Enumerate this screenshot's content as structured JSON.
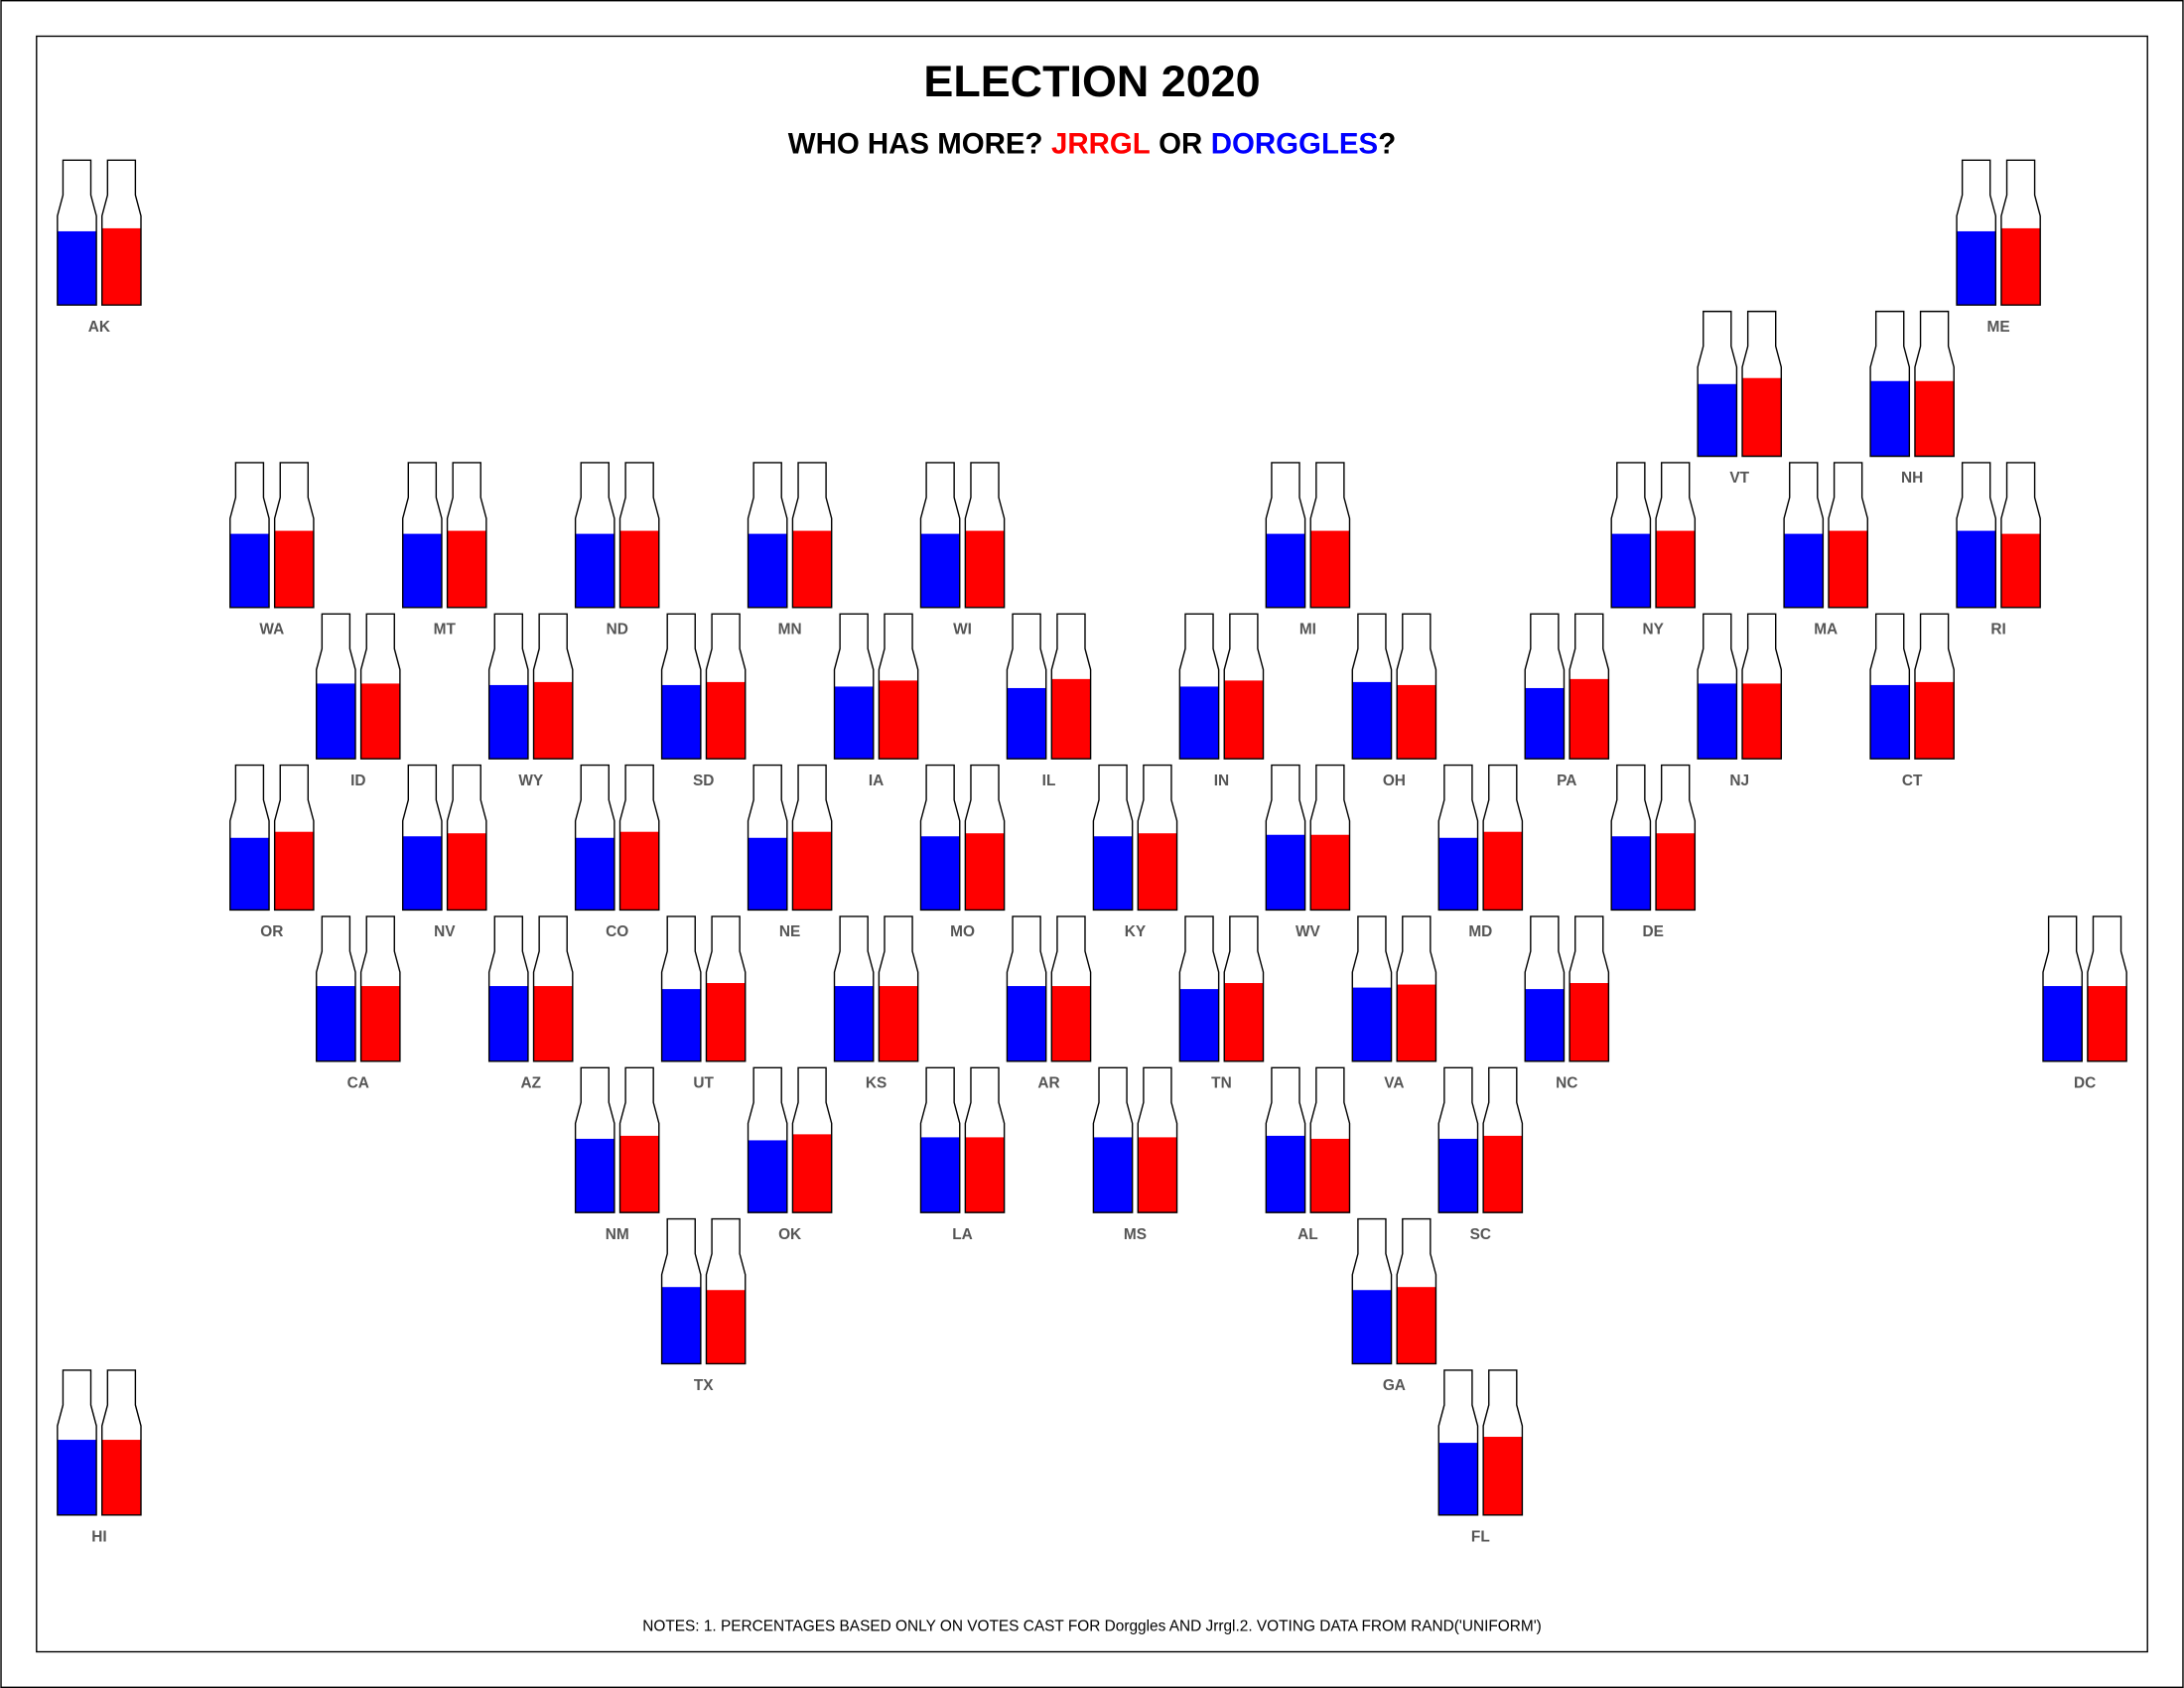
{
  "chart_data": {
    "type": "bottle",
    "title": "ELECTION 2020",
    "subtitle": {
      "lead": "WHO HAS MORE?",
      "middle": "OR",
      "end": "?"
    },
    "categories": [
      "AK",
      "ME",
      "VT",
      "NH",
      "WA",
      "MT",
      "ND",
      "MN",
      "WI",
      "MI",
      "NY",
      "MA",
      "RI",
      "ID",
      "WY",
      "SD",
      "IA",
      "IL",
      "IN",
      "OH",
      "PA",
      "NJ",
      "CT",
      "OR",
      "NV",
      "CO",
      "NE",
      "MO",
      "KY",
      "WV",
      "MD",
      "DE",
      "CA",
      "AZ",
      "UT",
      "KS",
      "AR",
      "TN",
      "VA",
      "NC",
      "DC",
      "NM",
      "OK",
      "LA",
      "MS",
      "AL",
      "SC",
      "TX",
      "GA",
      "HI",
      "FL"
    ],
    "series": [
      {
        "name": "DORGGLES",
        "color": "#0000ff",
        "values": [
          49,
          49,
          48,
          50,
          49,
          49,
          49,
          49,
          49,
          49,
          49,
          49,
          51,
          50,
          49,
          49,
          48,
          47,
          48,
          51,
          47,
          50,
          49,
          48,
          49,
          48,
          48,
          49,
          49,
          50,
          48,
          49,
          50,
          50,
          48,
          50,
          50,
          48,
          49,
          48,
          50,
          49,
          48,
          50,
          50,
          51,
          49,
          51,
          49,
          50,
          48
        ]
      },
      {
        "name": "JRRGL",
        "color": "#ff0000",
        "values": [
          51,
          51,
          52,
          50,
          51,
          51,
          51,
          51,
          51,
          51,
          51,
          51,
          49,
          50,
          51,
          51,
          52,
          53,
          52,
          49,
          53,
          50,
          51,
          52,
          51,
          52,
          52,
          51,
          51,
          50,
          52,
          51,
          50,
          50,
          52,
          50,
          50,
          52,
          51,
          52,
          50,
          51,
          52,
          50,
          50,
          49,
          51,
          49,
          51,
          50,
          52
        ]
      }
    ],
    "note": "NOTES: 1. PERCENTAGES BASED ONLY ON VOTES CAST FOR Dorggles AND Jrrgl.2. VOTING DATA FROM RAND('UNIFORM')"
  }
}
